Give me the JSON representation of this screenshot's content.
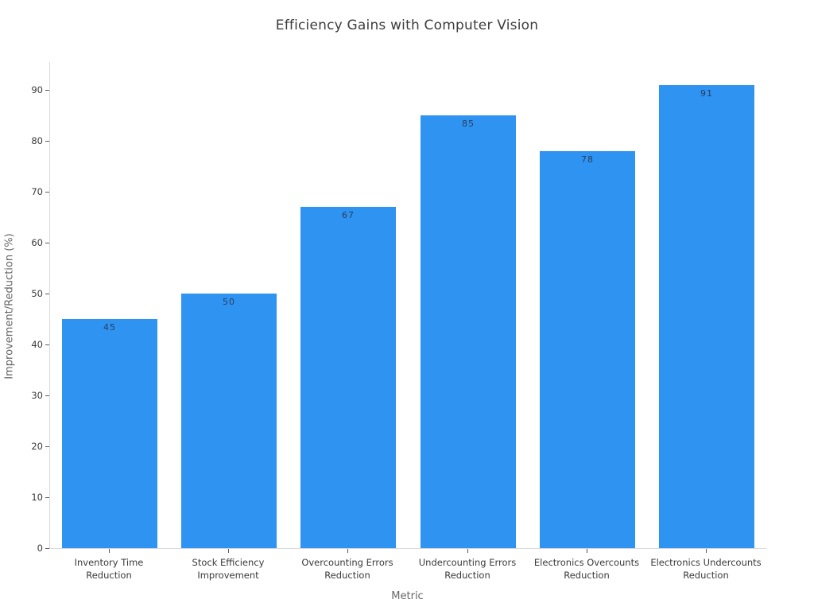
{
  "chart_data": {
    "type": "bar",
    "title": "Efficiency Gains with Computer Vision",
    "xlabel": "Metric",
    "ylabel": "Improvement/Reduction (%)",
    "categories": [
      "Inventory Time\nReduction",
      "Stock Efficiency\nImprovement",
      "Overcounting Errors\nReduction",
      "Undercounting Errors\nReduction",
      "Electronics Overcounts\nReduction",
      "Electronics Undercounts\nReduction"
    ],
    "values": [
      45,
      50,
      67,
      85,
      78,
      91
    ],
    "value_labels": [
      "45",
      "50",
      "67",
      "85",
      "78",
      "91"
    ],
    "ylim": [
      0,
      95.5
    ],
    "yticks": [
      0,
      10,
      20,
      30,
      40,
      50,
      60,
      70,
      80,
      90
    ],
    "grid": false,
    "legend": false,
    "bar_color": "#2f93f2",
    "value_label_color": "#2a3f5f",
    "axis_line_color": "#d9d9d9",
    "tick_label_color": "#3a3a3a",
    "axis_title_color": "#666666",
    "title_color": "#3d3d3d"
  }
}
